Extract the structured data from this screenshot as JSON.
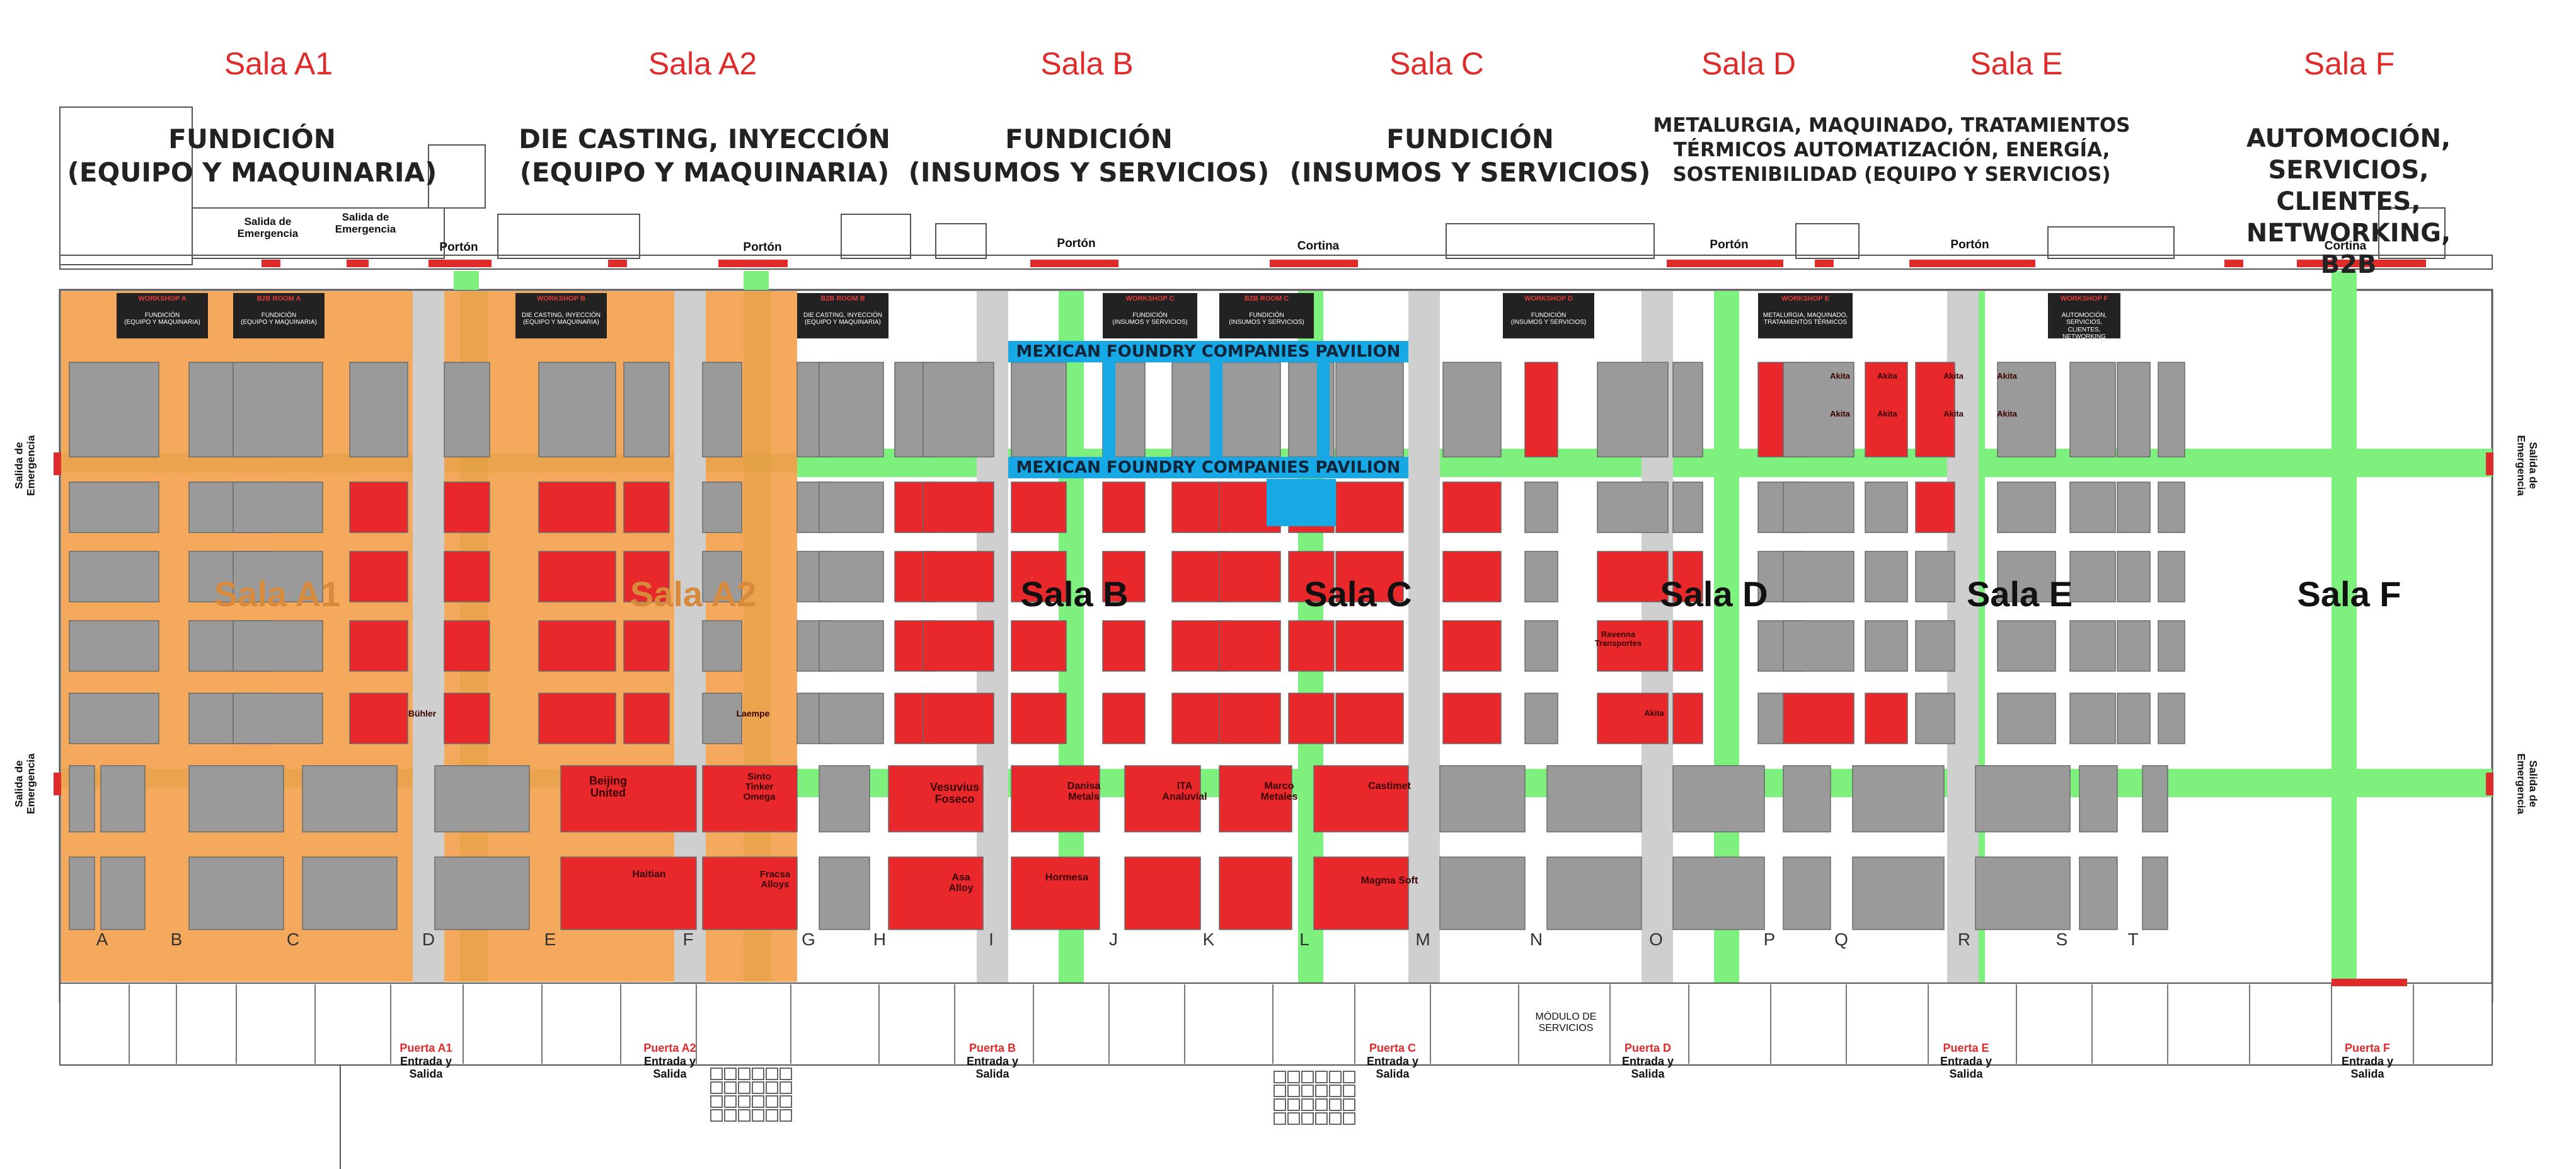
{
  "halls": [
    {
      "id": "A1",
      "heading": "Sala A1",
      "category": "FUNDICIÓN\n(EQUIPO  Y MAQUINARIA)",
      "center_label": "Sala A1"
    },
    {
      "id": "A2",
      "heading": "Sala A2",
      "category": "DIE CASTING, INYECCIÓN\n(EQUIPO Y MAQUINARIA)",
      "center_label": "Sala A2"
    },
    {
      "id": "B",
      "heading": "Sala B",
      "category": "FUNDICIÓN\n(INSUMOS Y SERVICIOS)",
      "center_label": "Sala B"
    },
    {
      "id": "C",
      "heading": "Sala C",
      "category": "FUNDICIÓN\n(INSUMOS Y SERVICIOS)",
      "center_label": "Sala C"
    },
    {
      "id": "D",
      "heading": "Sala D",
      "category": "METALURGIA, MAQUINADO, TRATAMIENTOS\nTÉRMICOS AUTOMATIZACIÓN, ENERGÍA,\nSOSTENIBILIDAD (EQUIPO Y SERVICIOS)",
      "center_label": "Sala D"
    },
    {
      "id": "E",
      "heading": "Sala E",
      "category": "",
      "center_label": "Sala E"
    },
    {
      "id": "F",
      "heading": "Sala F",
      "category": "AUTOMOCIÓN, SERVICIOS,\nCLIENTES, NETWORKING, B2B",
      "center_label": "Sala F"
    }
  ],
  "pavilion_label": "MEXICAN FOUNDRY COMPANIES PAVILION",
  "column_letters": [
    "A",
    "B",
    "C",
    "D",
    "E",
    "F",
    "G",
    "H",
    "I",
    "J",
    "K",
    "L",
    "M",
    "N",
    "O",
    "P",
    "Q",
    "R",
    "S",
    "T"
  ],
  "top_gates": [
    "Portón",
    "Portón",
    "Portón",
    "Cortina",
    "Portón",
    "Portón",
    "Cortina"
  ],
  "emergency_exit_label": "Salida de\nEmergencia",
  "doors": [
    {
      "name": "Puerta A1",
      "sub": "Entrada y\nSalida"
    },
    {
      "name": "Puerta A2",
      "sub": "Entrada y\nSalida"
    },
    {
      "name": "Puerta B",
      "sub": "Entrada y\nSalida"
    },
    {
      "name": "Puerta C",
      "sub": "Entrada y\nSalida"
    },
    {
      "name": "Puerta D",
      "sub": "Entrada y\nSalida"
    },
    {
      "name": "Puerta E",
      "sub": "Entrada y\nSalida"
    },
    {
      "name": "Puerta F",
      "sub": "Entrada y\nSalida"
    }
  ],
  "modulo_servicios": "MÓDULO DE\nSERVICIOS",
  "workshops": [
    {
      "title": "WORKSHOP A",
      "body": "FUNDICIÓN\n(EQUIPO Y MAQUINARIA)"
    },
    {
      "title": "B2B ROOM A",
      "body": "FUNDICIÓN\n(EQUIPO Y MAQUINARIA)"
    },
    {
      "title": "WORKSHOP B",
      "body": "DIE CASTING, INYECCIÓN\n(EQUIPO Y MAQUINARIA)"
    },
    {
      "title": "B2B ROOM B",
      "body": "DIE CASTING, INYECCIÓN\n(EQUIPO Y MAQUINARIA)"
    },
    {
      "title": "WORKSHOP C",
      "body": "FUNDICIÓN\n(INSUMOS Y SERVICIOS)"
    },
    {
      "title": "B2B ROOM C",
      "body": "FUNDICIÓN\n(INSUMOS Y SERVICIOS)"
    },
    {
      "title": "WORKSHOP D",
      "body": "FUNDICIÓN\n(INSUMOS Y SERVICIOS)"
    },
    {
      "title": "WORKSHOP E",
      "body": "METALURGIA, MAQUINADO,\nTRATAMIENTOS TÉRMICOS"
    },
    {
      "title": "WORKSHOP F",
      "body": "AUTOMOCIÓN, SERVICIOS,\nCLIENTES, NETWORKING"
    }
  ],
  "exhibitors": [
    "Beijing\nUnited",
    "Bühler",
    "Laempe",
    "Sinto\nTinker\nOmega",
    "Haitian",
    "Fracsa\nAlloys",
    "Vesuvius\nFoseco",
    "Asa\nAlloy",
    "Danisa\nMetals",
    "Hormesa",
    "ITA\nAnaluvial",
    "Marco\nMetales",
    "Castimet",
    "Magma Soft",
    "Ravenna\nTransportes",
    "Akita"
  ],
  "colors": {
    "orange_hall": "#f4a95d",
    "booth_red": "#e8282b",
    "booth_gray": "#9a9a9a",
    "aisle_green": "#7df07d",
    "aisle_gray": "#cfcfcf",
    "pavilion_blue": "#16a9e6",
    "heading_red": "#e02b2b"
  }
}
